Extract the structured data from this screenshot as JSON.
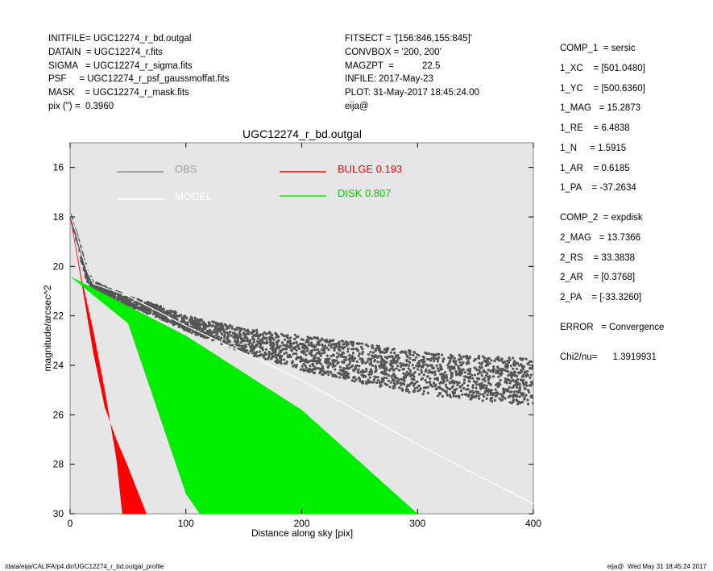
{
  "header_left": [
    "INITFILE= UGC12274_r_bd.outgal",
    "DATAIN  = UGC12274_r.fits",
    "SIGMA   = UGC12274_r_sigma.fits",
    "PSF     = UGC12274_r_psf_gaussmoffat.fits",
    "MASK    = UGC12274_r_mask.fits",
    "pix (\") =  0.3960"
  ],
  "header_mid": [
    "FITSECT = '[156:846,155:845]'",
    "CONVBOX = '200, 200'",
    "MAGZPT  =           22.5",
    "INFILE: 2017-May-23",
    "PLOT: 31-May-2017 18:45:24.00",
    "eija@"
  ],
  "header_right": [
    "COMP_1  = sersic",
    "1_XC    = [501.0480]",
    "1_YC    = [500.6360]",
    "1_MAG   = 15.2873",
    "1_RE    = 6.4838",
    "1_N     = 1.5915",
    "1_AR    = 0.6185",
    "1_PA    = -37.2634",
    "",
    "COMP_2  = expdisk",
    "2_MAG   = 13.7366",
    "2_RS    = 33.3838",
    "2_AR    = [0.3768]",
    "2_PA    = [-33.3260]",
    "",
    "ERROR   = Convergence",
    "",
    "Chi2/nu=      1.3919931"
  ],
  "footer_left": "/data/eija/CALIFA/p4.dir/UGC12274_r_bd.outgal_profile",
  "footer_right": "eija@  Wed May 31 18:45:24 2017",
  "chart_data": {
    "type": "scatter",
    "title": "UGC12274_r_bd.outgal",
    "xlabel": "Distance along sky [pix]",
    "ylabel": "magnitude/arcsec^2",
    "xlim": [
      0,
      400
    ],
    "ylim": [
      30,
      15
    ],
    "y_inverted": true,
    "xticks": [
      0,
      100,
      200,
      300,
      400
    ],
    "yticks": [
      16,
      18,
      20,
      22,
      24,
      26,
      28,
      30
    ],
    "grid": false,
    "background": "#e6e6e6",
    "legend": [
      {
        "label": "OBS",
        "color": "#888888"
      },
      {
        "label": "MODEL",
        "color": "#ffffff"
      },
      {
        "label": "BULGE  0.193",
        "color": "#ff0000"
      },
      {
        "label": "DISK  0.807",
        "color": "#00ee00"
      }
    ],
    "series": [
      {
        "name": "OBS",
        "color": "#555555",
        "points": [
          [
            0,
            17.9
          ],
          [
            5,
            18.7
          ],
          [
            10,
            19.6
          ],
          [
            15,
            20.4
          ],
          [
            20,
            20.8
          ],
          [
            30,
            21.0
          ],
          [
            50,
            21.4
          ],
          [
            75,
            21.8
          ],
          [
            100,
            22.3
          ],
          [
            150,
            23.0
          ],
          [
            200,
            23.5
          ],
          [
            250,
            23.9
          ],
          [
            300,
            24.3
          ],
          [
            350,
            24.5
          ],
          [
            400,
            24.7
          ]
        ],
        "scatter_width": [
          0.1,
          0.3,
          0.5,
          0.5,
          0.4,
          0.4,
          0.4,
          0.5,
          0.6,
          1.0,
          1.4,
          1.6,
          1.7,
          1.8,
          1.9
        ]
      },
      {
        "name": "MODEL",
        "color": "#ffffff",
        "points": [
          [
            0,
            17.9
          ],
          [
            5,
            18.6
          ],
          [
            10,
            19.5
          ],
          [
            15,
            20.2
          ],
          [
            20,
            20.7
          ],
          [
            50,
            21.2
          ],
          [
            100,
            22.4
          ],
          [
            200,
            24.6
          ],
          [
            300,
            27.2
          ],
          [
            400,
            29.6
          ]
        ]
      },
      {
        "name": "BULGE",
        "color": "#ff0000",
        "upper": [
          [
            0,
            17.9
          ],
          [
            10,
            20.5
          ],
          [
            20,
            22.6
          ],
          [
            30,
            25.0
          ],
          [
            40,
            27.8
          ],
          [
            45,
            30.0
          ]
        ],
        "lower": [
          [
            0,
            18.0
          ],
          [
            10,
            20.7
          ],
          [
            20,
            23.5
          ],
          [
            30,
            25.7
          ],
          [
            40,
            27.0
          ],
          [
            50,
            28.1
          ],
          [
            60,
            29.3
          ],
          [
            66,
            30.0
          ]
        ]
      },
      {
        "name": "DISK",
        "color": "#00ee00",
        "upper": [
          [
            0,
            20.4
          ],
          [
            50,
            22.3
          ],
          [
            100,
            29.2
          ],
          [
            112,
            30.0
          ]
        ],
        "lower": [
          [
            0,
            20.4
          ],
          [
            100,
            22.8
          ],
          [
            200,
            25.8
          ],
          [
            300,
            30.0
          ]
        ]
      }
    ]
  }
}
